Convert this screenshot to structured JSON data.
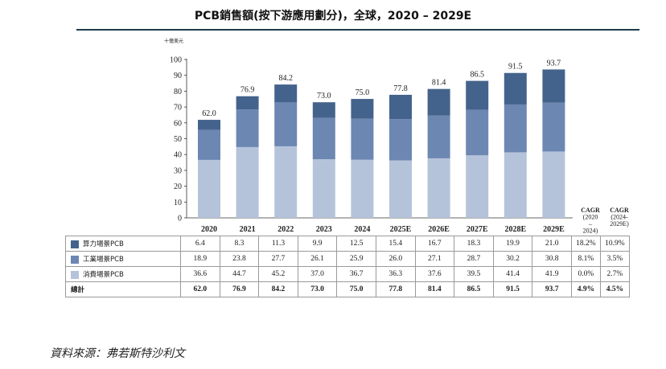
{
  "title": "PCB銷售額(按下游應用劃分)，全球，2020 – 2029E",
  "unit": "十億美元",
  "source": "資料來源：弗若斯特沙利文",
  "colors": {
    "compute": "#44638c",
    "industrial": "#6d87b3",
    "consumer": "#b5c3da",
    "rule": "#1f3b4d"
  },
  "chart_data": {
    "type": "bar",
    "stacked": true,
    "categories": [
      "2020",
      "2021",
      "2022",
      "2023",
      "2024",
      "2025E",
      "2026E",
      "2027E",
      "2028E",
      "2029E"
    ],
    "ylim": [
      0,
      100
    ],
    "yticks": [
      0,
      10,
      20,
      30,
      40,
      50,
      60,
      70,
      80,
      90,
      100
    ],
    "ylabel": "十億美元",
    "series": [
      {
        "name": "消費場景PCB",
        "values": [
          36.6,
          44.7,
          45.2,
          37.0,
          36.7,
          36.3,
          37.6,
          39.5,
          41.4,
          41.9
        ],
        "color": "#b5c3da"
      },
      {
        "name": "工業場景PCB",
        "values": [
          18.9,
          23.8,
          27.7,
          26.1,
          25.9,
          26.0,
          27.1,
          28.7,
          30.2,
          30.8
        ],
        "color": "#6d87b3"
      },
      {
        "name": "算力場景PCB",
        "values": [
          6.4,
          8.3,
          11.3,
          9.9,
          12.5,
          15.4,
          16.7,
          18.3,
          19.9,
          21.0
        ],
        "color": "#44638c"
      }
    ],
    "totals": [
      "62.0",
      "76.9",
      "84.2",
      "73.0",
      "75.0",
      "77.8",
      "81.4",
      "86.5",
      "91.5",
      "93.7"
    ],
    "cagr_headers": [
      [
        "CAGR",
        "(2020",
        "–",
        "2024)"
      ],
      [
        "CAGR",
        "(2024-",
        "2029E)"
      ]
    ]
  },
  "table": {
    "rows": [
      {
        "label": "算力場景PCB",
        "swatch": "#44638c",
        "values": [
          "6.4",
          "8.3",
          "11.3",
          "9.9",
          "12.5",
          "15.4",
          "16.7",
          "18.3",
          "19.9",
          "21.0"
        ],
        "cagr": [
          "18.2%",
          "10.9%"
        ]
      },
      {
        "label": "工業場景PCB",
        "swatch": "#6d87b3",
        "values": [
          "18.9",
          "23.8",
          "27.7",
          "26.1",
          "25.9",
          "26.0",
          "27.1",
          "28.7",
          "30.2",
          "30.8"
        ],
        "cagr": [
          "8.1%",
          "3.5%"
        ]
      },
      {
        "label": "消費場景PCB",
        "swatch": "#b5c3da",
        "values": [
          "36.6",
          "44.7",
          "45.2",
          "37.0",
          "36.7",
          "36.3",
          "37.6",
          "39.5",
          "41.4",
          "41.9"
        ],
        "cagr": [
          "0.0%",
          "2.7%"
        ]
      }
    ],
    "total": {
      "label": "總計",
      "values": [
        "62.0",
        "76.9",
        "84.2",
        "73.0",
        "75.0",
        "77.8",
        "81.4",
        "86.5",
        "91.5",
        "93.7"
      ],
      "cagr": [
        "4.9%",
        "4.5%"
      ]
    }
  }
}
